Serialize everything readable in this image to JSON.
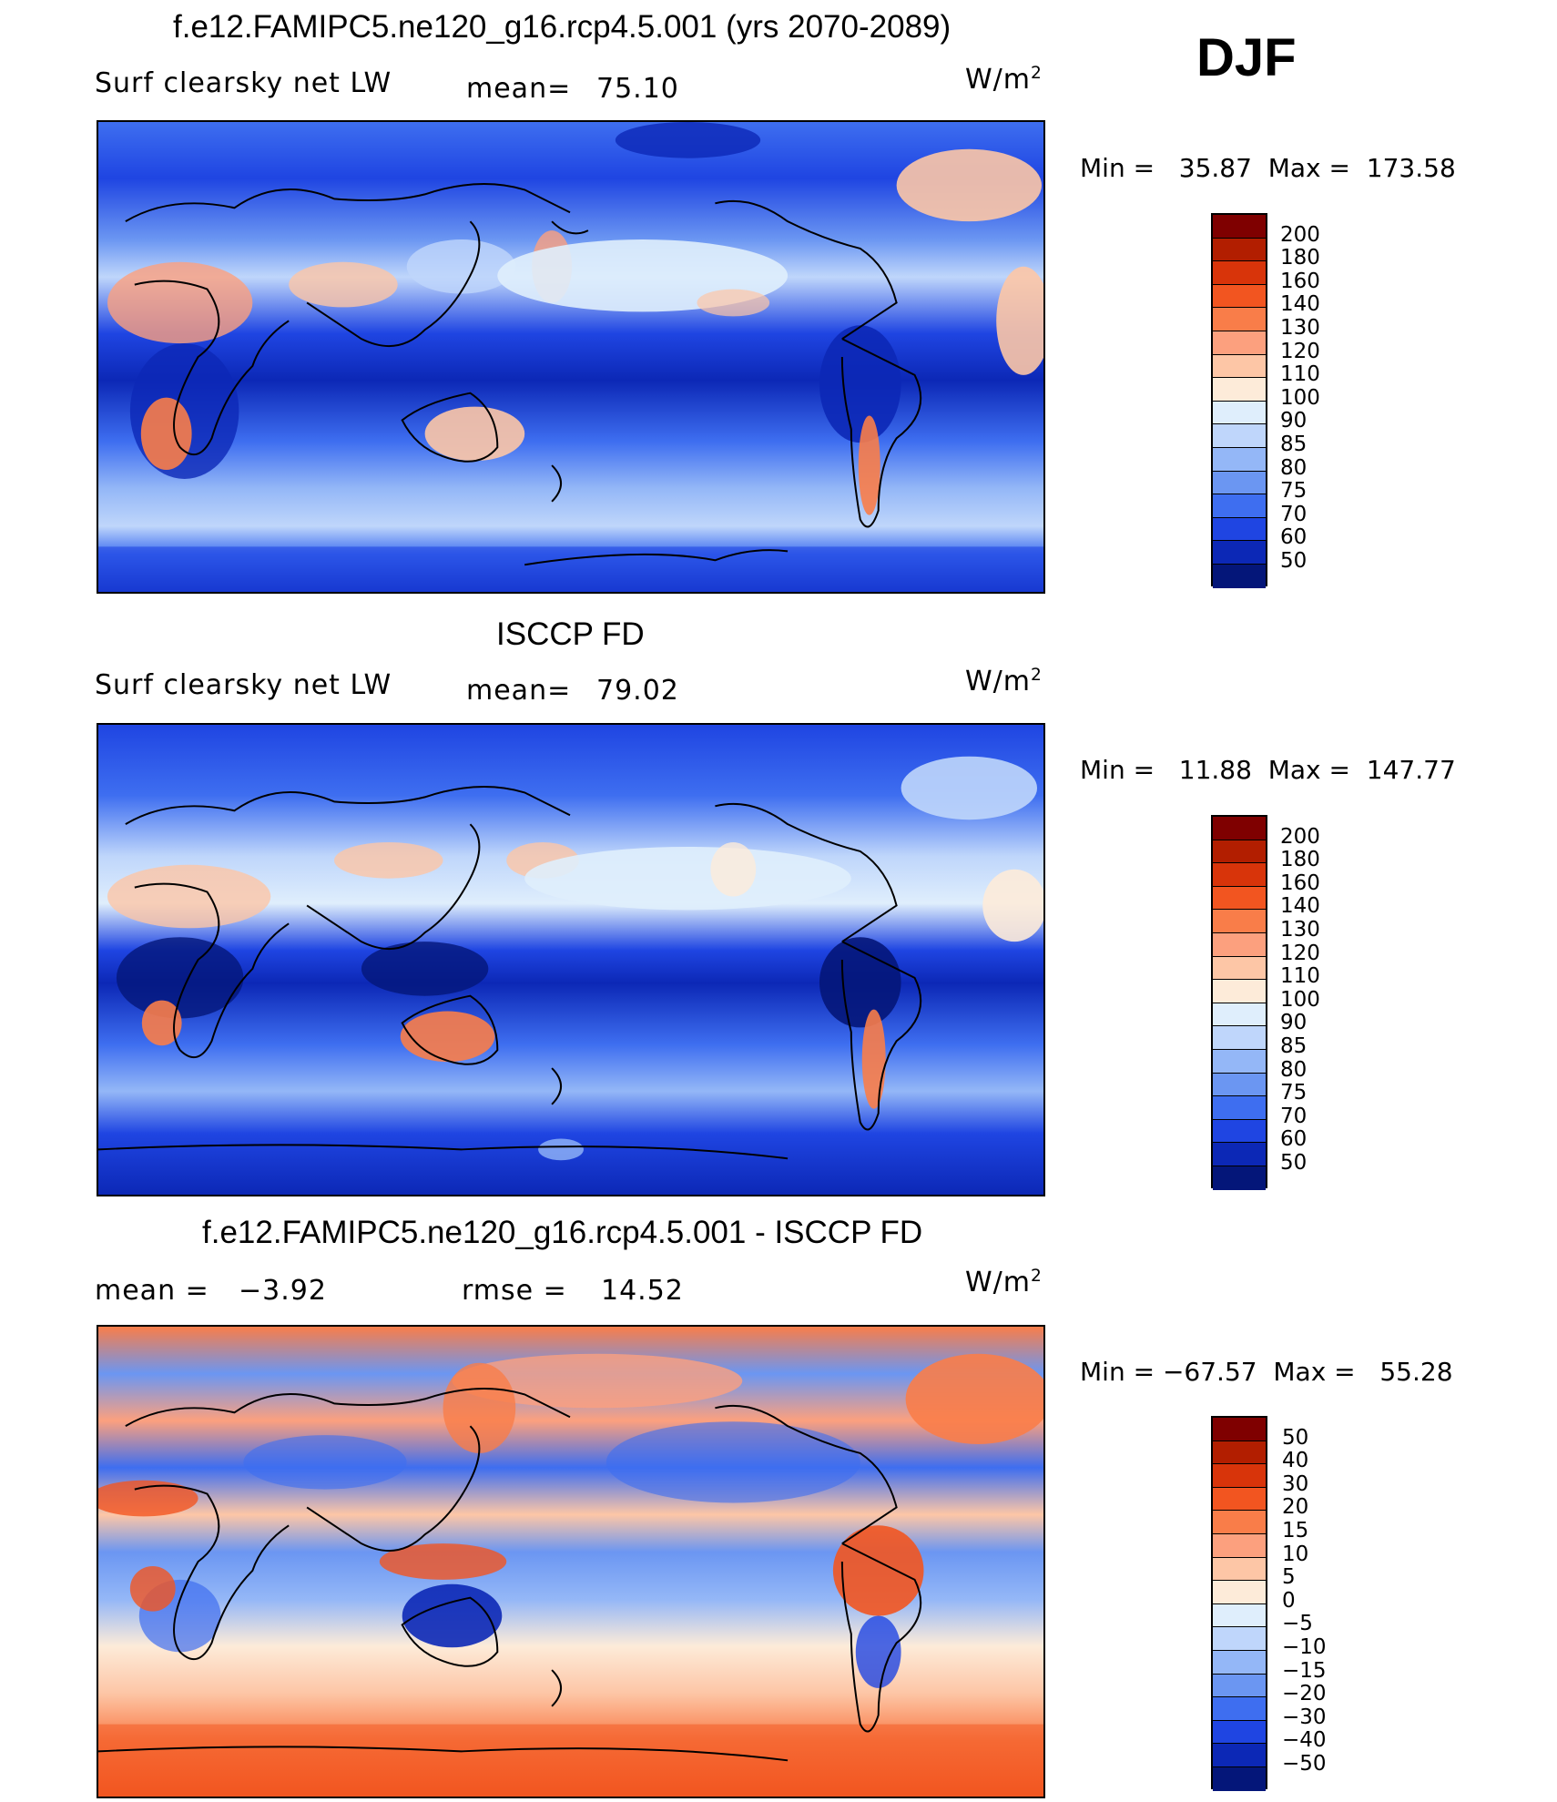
{
  "season": "DJF",
  "unit": "W/m",
  "unit_sup": "2",
  "panels": [
    {
      "title": "f.e12.FAMIPC5.ne120_g16.rcp4.5.001 (yrs 2070-2089)",
      "left_label": "Surf clearsky net LW",
      "stat1_label": "mean=",
      "stat1_value": "75.10",
      "stat2_label": "",
      "stat2_value": "",
      "min_label": "Min  =",
      "min_value": "35.87",
      "max_label": "Max  =",
      "max_value": "173.58"
    },
    {
      "title": "ISCCP FD",
      "left_label": "Surf clearsky net LW",
      "stat1_label": "mean=",
      "stat1_value": "79.02",
      "stat2_label": "",
      "stat2_value": "",
      "min_label": "Min  =",
      "min_value": "11.88",
      "max_label": "Max  =",
      "max_value": "147.77"
    },
    {
      "title": "f.e12.FAMIPC5.ne120_g16.rcp4.5.001 - ISCCP FD",
      "left_label": "",
      "stat1_label": "mean  =",
      "stat1_value": "−3.92",
      "stat2_label": "rmse  =",
      "stat2_value": "14.52",
      "min_label": "Min  =",
      "min_value": "−67.57",
      "max_label": "Max  =",
      "max_value": "55.28"
    }
  ],
  "colorbars": {
    "absolute": {
      "labels": [
        "200",
        "180",
        "160",
        "140",
        "130",
        "120",
        "110",
        "100",
        "90",
        "85",
        "80",
        "75",
        "70",
        "60",
        "50"
      ],
      "colors": [
        "#7f0000",
        "#b21e00",
        "#d8340a",
        "#f25520",
        "#f97d49",
        "#fca07e",
        "#fdc6a6",
        "#fdebd9",
        "#dfeefc",
        "#bfd6fb",
        "#94b7f7",
        "#6b96f2",
        "#3e6ef0",
        "#1f45e2",
        "#0c28b6",
        "#041679"
      ]
    },
    "difference": {
      "labels": [
        "50",
        "40",
        "30",
        "20",
        "15",
        "10",
        "5",
        "0",
        "−5",
        "−10",
        "−15",
        "−20",
        "−30",
        "−40",
        "−50"
      ],
      "colors": [
        "#7f0000",
        "#b21e00",
        "#d8340a",
        "#f25520",
        "#f97d49",
        "#fca07e",
        "#fdc6a6",
        "#fdebd9",
        "#dfeefc",
        "#bfd6fb",
        "#94b7f7",
        "#6b96f2",
        "#3e6ef0",
        "#1f45e2",
        "#0c28b6",
        "#041679"
      ]
    }
  }
}
